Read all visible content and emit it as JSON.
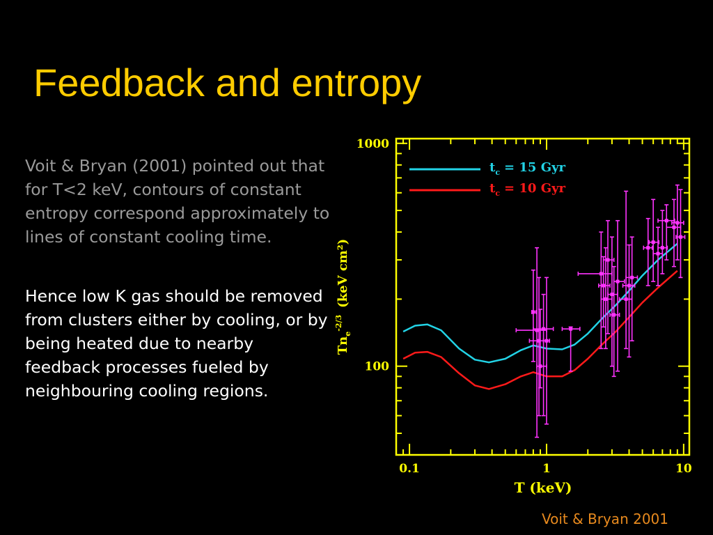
{
  "slide": {
    "title": "Feedback and entropy",
    "paragraph1": "Voit & Bryan (2001) pointed out that for T<2 keV, contours of constant entropy correspond approximately to lines of constant cooling time.",
    "paragraph2": "Hence low K gas should be removed from clusters either by cooling, or by being heated due to nearby feedback processes fueled by neighbouring cooling regions.",
    "credit": "Voit & Bryan 2001"
  },
  "colors": {
    "title": "#ffcc00",
    "axes": "#ffff00",
    "cyan_line": "#22d3e6",
    "red_line": "#ff1a1a",
    "data_points": "#ff33ff",
    "credit": "#e88a1e"
  },
  "chart_data": {
    "type": "line",
    "xscale": "log",
    "yscale": "log",
    "xlim": [
      0.08,
      11
    ],
    "ylim": [
      40,
      1050
    ],
    "xlabel": "T  (keV)",
    "ylabel_main": "Tn",
    "ylabel_sub": "e",
    "ylabel_sup": "-2/3",
    "ylabel_units": "(keV  cm²)",
    "xticks": [
      {
        "value": 0.1,
        "label": "0.1"
      },
      {
        "value": 1,
        "label": "1"
      },
      {
        "value": 10,
        "label": "10"
      }
    ],
    "yticks": [
      {
        "value": 100,
        "label": "100"
      },
      {
        "value": 1000,
        "label": "1000"
      }
    ],
    "series": [
      {
        "name_main": "t",
        "name_sub": "c",
        "name_value": "= 15 Gyr",
        "color": "#22d3e6",
        "x": [
          0.09,
          0.11,
          0.135,
          0.17,
          0.23,
          0.3,
          0.38,
          0.5,
          0.65,
          0.8,
          1.0,
          1.3,
          1.6,
          2.0,
          2.5,
          3.2,
          4.0,
          5.0,
          6.5,
          9.0
        ],
        "y": [
          143,
          152,
          154,
          145,
          120,
          107,
          104,
          108,
          118,
          124,
          120,
          119,
          125,
          140,
          162,
          188,
          218,
          255,
          300,
          355
        ]
      },
      {
        "name_main": "t",
        "name_sub": "c",
        "name_value": "= 10 Gyr",
        "color": "#ff1a1a",
        "x": [
          0.09,
          0.11,
          0.135,
          0.17,
          0.23,
          0.3,
          0.38,
          0.5,
          0.65,
          0.8,
          1.0,
          1.3,
          1.6,
          2.0,
          2.5,
          3.2,
          4.0,
          5.0,
          6.5,
          9.0
        ],
        "y": [
          108,
          115,
          116,
          110,
          93,
          82,
          79,
          83,
          90,
          94,
          90,
          90,
          96,
          108,
          124,
          143,
          166,
          193,
          225,
          268
        ]
      }
    ],
    "points": [
      {
        "x": 0.8,
        "y": 175,
        "xerr": [
          0.78,
          0.84
        ],
        "yerr": [
          105,
          270
        ]
      },
      {
        "x": 0.85,
        "y": 145,
        "xerr": [
          0.6,
          1.0
        ],
        "yerr": [
          48,
          340
        ]
      },
      {
        "x": 0.88,
        "y": 130,
        "xerr": [
          0.75,
          0.95
        ],
        "yerr": [
          60,
          250
        ]
      },
      {
        "x": 0.9,
        "y": 100,
        "xerr": [
          0.85,
          1.0
        ],
        "yerr": [
          80,
          180
        ]
      },
      {
        "x": 0.95,
        "y": 147,
        "xerr": [
          0.8,
          1.12
        ],
        "yerr": [
          60,
          210
        ]
      },
      {
        "x": 1.0,
        "y": 130,
        "xerr": [
          0.95,
          1.05
        ],
        "yerr": [
          55,
          250
        ]
      },
      {
        "x": 1.5,
        "y": 147,
        "xerr": [
          1.3,
          1.75
        ],
        "yerr": [
          95,
          150
        ]
      },
      {
        "x": 2.5,
        "y": 260,
        "xerr": [
          1.7,
          3.0
        ],
        "yerr": [
          120,
          400
        ]
      },
      {
        "x": 2.6,
        "y": 230,
        "xerr": [
          2.4,
          2.9
        ],
        "yerr": [
          150,
          310
        ]
      },
      {
        "x": 2.7,
        "y": 200,
        "xerr": [
          2.5,
          3.0
        ],
        "yerr": [
          120,
          340
        ]
      },
      {
        "x": 2.8,
        "y": 300,
        "xerr": [
          2.6,
          3.1
        ],
        "yerr": [
          140,
          450
        ]
      },
      {
        "x": 3.0,
        "y": 210,
        "xerr": [
          2.8,
          3.3
        ],
        "yerr": [
          100,
          380
        ]
      },
      {
        "x": 3.1,
        "y": 170,
        "xerr": [
          2.9,
          3.4
        ],
        "yerr": [
          90,
          280
        ]
      },
      {
        "x": 3.3,
        "y": 240,
        "xerr": [
          3.1,
          3.7
        ],
        "yerr": [
          95,
          450
        ]
      },
      {
        "x": 3.8,
        "y": 200,
        "xerr": [
          3.4,
          4.2
        ],
        "yerr": [
          120,
          610
        ]
      },
      {
        "x": 4.0,
        "y": 230,
        "xerr": [
          3.6,
          4.4
        ],
        "yerr": [
          110,
          350
        ]
      },
      {
        "x": 4.2,
        "y": 250,
        "xerr": [
          3.8,
          4.6
        ],
        "yerr": [
          130,
          380
        ]
      },
      {
        "x": 5.5,
        "y": 340,
        "xerr": [
          5.1,
          5.9
        ],
        "yerr": [
          230,
          460
        ]
      },
      {
        "x": 6.0,
        "y": 360,
        "xerr": [
          5.6,
          6.6
        ],
        "yerr": [
          240,
          560
        ]
      },
      {
        "x": 6.5,
        "y": 320,
        "xerr": [
          6.0,
          7.0
        ],
        "yerr": [
          230,
          420
        ]
      },
      {
        "x": 7.0,
        "y": 340,
        "xerr": [
          6.5,
          7.6
        ],
        "yerr": [
          260,
          500
        ]
      },
      {
        "x": 7.5,
        "y": 450,
        "xerr": [
          6.5,
          8.6
        ],
        "yerr": [
          300,
          530
        ]
      },
      {
        "x": 8.5,
        "y": 420,
        "xerr": [
          7.5,
          9.5
        ],
        "yerr": [
          280,
          560
        ]
      },
      {
        "x": 9.0,
        "y": 440,
        "xerr": [
          8.2,
          10.0
        ],
        "yerr": [
          300,
          650
        ]
      },
      {
        "x": 9.5,
        "y": 380,
        "xerr": [
          8.8,
          10.2
        ],
        "yerr": [
          250,
          620
        ]
      }
    ]
  }
}
